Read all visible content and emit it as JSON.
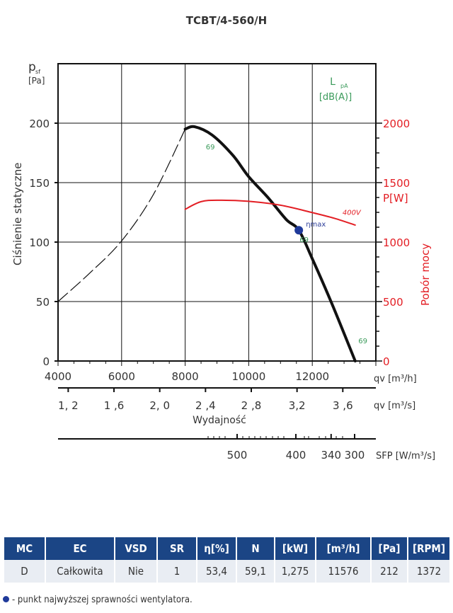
{
  "chart_data": {
    "type": "line",
    "title": "TCBT/4-560/H",
    "ylabel": "Ciśnienie statyczne",
    "ylabel_symbol": "p",
    "ylabel_sub": "sf",
    "ylabel_unit": "[Pa]",
    "y2label": "Pobór mocy",
    "y2label_unit": "P[W]",
    "xlabel": "Wydajność",
    "lpa_label": "L",
    "lpa_sub": "pA",
    "lpa_unit": "[dB(A)]",
    "xlim": [
      4000,
      14000
    ],
    "ylim": [
      0,
      250
    ],
    "y2lim": [
      0,
      2500
    ],
    "grid": true,
    "x_ticks": [
      {
        "v": 4000,
        "label": "4000"
      },
      {
        "v": 6000,
        "label": "6000"
      },
      {
        "v": 8000,
        "label": "8000"
      },
      {
        "v": 10000,
        "label": "10000"
      },
      {
        "v": 12000,
        "label": "12000"
      }
    ],
    "x_unit": "qv [m³/h]",
    "y_ticks": [
      {
        "v": 0,
        "label": "0"
      },
      {
        "v": 50,
        "label": "50"
      },
      {
        "v": 100,
        "label": "100"
      },
      {
        "v": 150,
        "label": "150"
      },
      {
        "v": 200,
        "label": "200"
      }
    ],
    "y2_ticks": [
      {
        "v": 0,
        "label": "0"
      },
      {
        "v": 500,
        "label": "500"
      },
      {
        "v": 1000,
        "label": "1000"
      },
      {
        "v": 1500,
        "label": "1500"
      },
      {
        "v": 2000,
        "label": "2000"
      }
    ],
    "x2_ticks": [
      {
        "v": 1.2,
        "label": "1, 2"
      },
      {
        "v": 1.6,
        "label": "1 ,6"
      },
      {
        "v": 2.0,
        "label": "2, 0"
      },
      {
        "v": 2.4,
        "label": "2 ,4"
      },
      {
        "v": 2.8,
        "label": "2 ,8"
      },
      {
        "v": 3.2,
        "label": "3,2"
      },
      {
        "v": 3.6,
        "label": "3 ,6"
      }
    ],
    "x2_unit": "qv [m³/s]",
    "sfp_ticks": [
      {
        "v": 500,
        "label": "500"
      },
      {
        "v": 400,
        "label": "400"
      },
      {
        "v": 340,
        "label": "340"
      },
      {
        "v": 300,
        "label": "300"
      }
    ],
    "sfp_unit": "SFP [W/m³/s]",
    "series": [
      {
        "name": "pressure",
        "color": "#111111",
        "x": [
          8000,
          8300,
          8850,
          9500,
          10000,
          10620,
          11180,
          11576,
          12000,
          12620,
          13350
        ],
        "y": [
          195,
          197,
          190,
          173,
          155,
          137,
          119,
          110,
          86,
          48,
          0
        ]
      },
      {
        "name": "pressure-unstable",
        "color": "#111111",
        "dashed": true,
        "x": [
          4000,
          5000,
          6000,
          7000,
          8000
        ],
        "y": [
          50,
          74,
          101,
          140,
          195
        ]
      },
      {
        "name": "400V",
        "color": "#e31e24",
        "axis": "y2",
        "x": [
          8000,
          8500,
          9070,
          10000,
          11000,
          12000,
          12700,
          13350
        ],
        "y": [
          1276,
          1340,
          1352,
          1343,
          1310,
          1248,
          1200,
          1143
        ]
      }
    ],
    "annotations": [
      {
        "text": "69",
        "x": 8650,
        "y": 178,
        "color": "#3a9a5a"
      },
      {
        "text": "69",
        "x": 11600,
        "y": 100,
        "color": "#3a9a5a"
      },
      {
        "text": "69",
        "x": 13450,
        "y": 15,
        "color": "#3a9a5a"
      },
      {
        "text": "400V",
        "x": 12950,
        "y": 1230,
        "color": "#e31e24",
        "axis": "y2"
      },
      {
        "text": "ηmax",
        "x": 11800,
        "y": 113,
        "color": "#2e3f9a"
      }
    ],
    "eta_max_point": {
      "x": 11576,
      "y": 110,
      "color": "#1f3a9a"
    }
  },
  "table": {
    "headers": [
      "MC",
      "EC",
      "VSD",
      "SR",
      "η[%]",
      "N",
      "[kW]",
      "[m³/h]",
      "[Pa]",
      "[RPM]"
    ],
    "row": [
      "D",
      "Całkowita",
      "Nie",
      "1",
      "53,4",
      "59,1",
      "1,275",
      "11576",
      "212",
      "1372"
    ]
  },
  "footnote": "- punkt najwyższej sprawności wentylatora."
}
